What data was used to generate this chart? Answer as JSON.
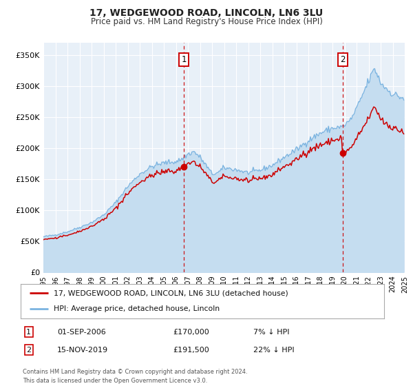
{
  "title": "17, WEDGEWOOD ROAD, LINCOLN, LN6 3LU",
  "subtitle": "Price paid vs. HM Land Registry's House Price Index (HPI)",
  "legend_line1": "17, WEDGEWOOD ROAD, LINCOLN, LN6 3LU (detached house)",
  "legend_line2": "HPI: Average price, detached house, Lincoln",
  "sale1_date": "01-SEP-2006",
  "sale1_price": "£170,000",
  "sale1_hpi": "7% ↓ HPI",
  "sale1_year": 2006.67,
  "sale1_value": 170000,
  "sale2_date": "15-NOV-2019",
  "sale2_price": "£191,500",
  "sale2_hpi": "22% ↓ HPI",
  "sale2_year": 2019.87,
  "sale2_value": 191500,
  "hpi_color": "#7ab3e0",
  "hpi_fill_color": "#c5ddf0",
  "price_color": "#cc0000",
  "marker_color": "#cc0000",
  "vline_color": "#cc0000",
  "plot_bg": "#e8f0f8",
  "grid_color": "#ffffff",
  "fig_bg": "#ffffff",
  "ylim_min": 0,
  "ylim_max": 370000,
  "yticks": [
    0,
    50000,
    100000,
    150000,
    200000,
    250000,
    300000,
    350000
  ],
  "ytick_labels": [
    "£0",
    "£50K",
    "£100K",
    "£150K",
    "£200K",
    "£250K",
    "£300K",
    "£350K"
  ],
  "footer": "Contains HM Land Registry data © Crown copyright and database right 2024.\nThis data is licensed under the Open Government Licence v3.0.",
  "xstart": 1995,
  "xend": 2025
}
